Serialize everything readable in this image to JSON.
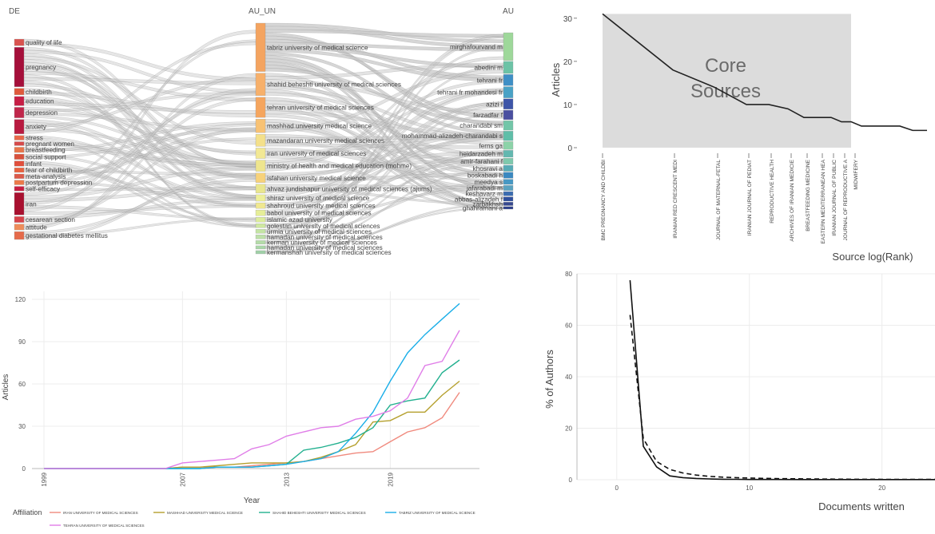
{
  "sankey": {
    "col_labels": [
      "DE",
      "AU_UN",
      "AU"
    ],
    "keywords": [
      {
        "label": "quality of life",
        "weight": 1,
        "color": "#d9534f"
      },
      {
        "label": "pregnancy",
        "weight": 6,
        "color": "#a50f3a"
      },
      {
        "label": "childbirth",
        "weight": 1,
        "color": "#e05a3c"
      },
      {
        "label": "education",
        "weight": 1.4,
        "color": "#c71e45"
      },
      {
        "label": "depression",
        "weight": 1.6,
        "color": "#c0264a"
      },
      {
        "label": "anxiety",
        "weight": 2.2,
        "color": "#b81a40"
      },
      {
        "label": "stress",
        "weight": 0.7,
        "color": "#e8684a"
      },
      {
        "label": "pregnant women",
        "weight": 0.6,
        "color": "#d64a4a"
      },
      {
        "label": "breastfeeding",
        "weight": 0.8,
        "color": "#e8754a"
      },
      {
        "label": "social support",
        "weight": 0.8,
        "color": "#d9513c"
      },
      {
        "label": "infant",
        "weight": 0.8,
        "color": "#e04f3c"
      },
      {
        "label": "fear of childbirth",
        "weight": 0.7,
        "color": "#e9623f"
      },
      {
        "label": "meta-analysis",
        "weight": 0.7,
        "color": "#dc5a4a"
      },
      {
        "label": "postpartum depression",
        "weight": 0.7,
        "color": "#ec7a4a"
      },
      {
        "label": "self-efficacy",
        "weight": 0.7,
        "color": "#c81e42"
      },
      {
        "label": "iran",
        "weight": 3.4,
        "color": "#a8102f"
      },
      {
        "label": "cesarean section",
        "weight": 0.9,
        "color": "#d8434a"
      },
      {
        "label": "attitude",
        "weight": 0.9,
        "color": "#ee8c5a"
      },
      {
        "label": "gestational diabetes mellitus",
        "weight": 1.2,
        "color": "#e56a4a"
      }
    ],
    "universities": [
      {
        "label": "tabriz university of medical science",
        "weight": 6,
        "color": "#f4a460"
      },
      {
        "label": "shahid beheshti university of medical sciences",
        "weight": 2.8,
        "color": "#f7b06a"
      },
      {
        "label": "tehran university of medical sciences",
        "weight": 2.5,
        "color": "#f5a55e"
      },
      {
        "label": "mashhad university medical science",
        "weight": 1.7,
        "color": "#f8c274"
      },
      {
        "label": "mazandaran university medical sciences",
        "weight": 1.5,
        "color": "#f4e08a"
      },
      {
        "label": "iran university of medical sciences",
        "weight": 1.3,
        "color": "#f2e894"
      },
      {
        "label": "ministry of health and medical education (mohme)",
        "weight": 1.4,
        "color": "#eee58e"
      },
      {
        "label": "isfahan university medical science",
        "weight": 1.2,
        "color": "#f7d27a"
      },
      {
        "label": "ahvaz jundishapur university of medical sciences (ajums)",
        "weight": 1.1,
        "color": "#e9e68f"
      },
      {
        "label": "shiraz university of medical science",
        "weight": 0.8,
        "color": "#eef09a"
      },
      {
        "label": "shahroud university medical sciences",
        "weight": 0.7,
        "color": "#f0e890"
      },
      {
        "label": "babol university of medical sciences",
        "weight": 0.7,
        "color": "#e6ee98"
      },
      {
        "label": "islamic azad university",
        "weight": 0.6,
        "color": "#dcec9c"
      },
      {
        "label": "golestan university of medical sciences",
        "weight": 0.5,
        "color": "#cfe8a0"
      },
      {
        "label": "urmia university of medical sciences",
        "weight": 0.5,
        "color": "#c4e4a4"
      },
      {
        "label": "hamadan university of medical sciences",
        "weight": 0.5,
        "color": "#bde0a8"
      },
      {
        "label": "kerman university of medical sciences",
        "weight": 0.45,
        "color": "#b4dca8"
      },
      {
        "label": "hamadan university of medical sciences",
        "weight": 0.4,
        "color": "#aad6a8"
      },
      {
        "label": "kermanshah university of medical sciences",
        "weight": 0.4,
        "color": "#a0d0a8"
      }
    ],
    "authors": [
      {
        "label": "mirghafourvand m",
        "weight": 3.2,
        "color": "#9ed89a"
      },
      {
        "label": "abedini m",
        "weight": 1.4,
        "color": "#6cc3a6"
      },
      {
        "label": "tehrani fr",
        "weight": 1.3,
        "color": "#3e8fc6"
      },
      {
        "label": "tehrani fr mohandesi fr",
        "weight": 1.3,
        "color": "#49a2c6"
      },
      {
        "label": "azizi f",
        "weight": 1.2,
        "color": "#3d55a8"
      },
      {
        "label": "farzadfar f",
        "weight": 1.1,
        "color": "#4a4fa0"
      },
      {
        "label": "charandabi sm",
        "weight": 1.1,
        "color": "#72c6a8"
      },
      {
        "label": "mohammad-alizadeh-charandabi s",
        "weight": 1.1,
        "color": "#5fbea8"
      },
      {
        "label": "ferns ga",
        "weight": 0.9,
        "color": "#8cd3a8"
      },
      {
        "label": "heidarzadeh m",
        "weight": 0.8,
        "color": "#62b8b0"
      },
      {
        "label": "amir-farahani f",
        "weight": 0.7,
        "color": "#7ec9ad"
      },
      {
        "label": "khosravi a",
        "weight": 0.7,
        "color": "#57abb6"
      },
      {
        "label": "boskabadi h",
        "weight": 0.7,
        "color": "#3a88c0"
      },
      {
        "label": "meedya s",
        "weight": 0.6,
        "color": "#4698c4"
      },
      {
        "label": "jafarabadi m",
        "weight": 0.6,
        "color": "#5aa2c0"
      },
      {
        "label": "keshavarz m",
        "weight": 0.5,
        "color": "#3b6cb0"
      },
      {
        "label": "abbas-alizadeh f",
        "weight": 0.5,
        "color": "#2f4f9c"
      },
      {
        "label": "zarbakhsh",
        "weight": 0.4,
        "color": "#36488f"
      },
      {
        "label": "ghahramani a",
        "weight": 0.3,
        "color": "#2c3f8a"
      }
    ]
  },
  "bradford": {
    "annotation_line1": "Core",
    "annotation_line2": "Sources",
    "ylabel": "Articles",
    "xlabel": "Source log(Rank)",
    "yticks": [
      0,
      10,
      20,
      30
    ],
    "ymax": 32,
    "sources": [
      "BMC PREGNANCY AND CHILDBI",
      "IRANIAN RED CRESCENT MEDI",
      "JOURNAL OF MATERNAL-FETAL",
      "IRANIAN JOURNAL OF PEDIAT",
      "REPRODUCTIVE HEALTH",
      "ARCHIVES OF IRANIAN MEDICIE",
      "BREASTFEEDING MEDICINE",
      "EASTERN MEDITERRANEAN HEA",
      "IRANIAN JOURNAL OF PUBLIC",
      "JOURNAL OF REPRODUCTIVE A",
      "MIDWIFERY"
    ],
    "core_count": 11,
    "articles": [
      31,
      18,
      14,
      10,
      10,
      9,
      7,
      7,
      7,
      6,
      6,
      5,
      5,
      5,
      5,
      4,
      4
    ]
  },
  "chart_data": [
    {
      "type": "line",
      "title": "",
      "xlabel": "Year",
      "ylabel": "Articles",
      "xlim": [
        1999,
        2023
      ],
      "ylim": [
        0,
        120
      ],
      "xticks": [
        1999,
        2007,
        2013,
        2019
      ],
      "yticks": [
        0,
        30,
        60,
        90,
        120
      ],
      "legend_title": "Affiliation",
      "legend_position": "bottom",
      "x": [
        1999,
        2000,
        2001,
        2002,
        2003,
        2004,
        2005,
        2006,
        2007,
        2008,
        2009,
        2010,
        2011,
        2012,
        2013,
        2014,
        2015,
        2016,
        2017,
        2018,
        2019,
        2020,
        2021,
        2022,
        2023
      ],
      "series": [
        {
          "name": "IRAN UNIVERSITY OF MEDICAL SCIENCES",
          "color": "#f08a7e",
          "values": [
            0,
            0,
            0,
            0,
            0,
            0,
            0,
            0,
            1,
            1,
            1,
            1,
            2,
            3,
            4,
            5,
            7,
            9,
            11,
            12,
            19,
            26,
            29,
            36,
            54
          ]
        },
        {
          "name": "MASHHAD UNIVERSITY MEDICAL SCIENCE",
          "color": "#b5a02e",
          "values": [
            0,
            0,
            0,
            0,
            0,
            0,
            0,
            0,
            1,
            1,
            2,
            3,
            4,
            4,
            4,
            5,
            8,
            12,
            17,
            33,
            34,
            40,
            40,
            52,
            62
          ]
        },
        {
          "name": "SHAHID BEHESHTI UNIVERSITY MEDICAL SCIENCES",
          "color": "#22b08f",
          "values": [
            0,
            0,
            0,
            0,
            0,
            0,
            0,
            0,
            0,
            0,
            1,
            1,
            1,
            2,
            3,
            13,
            15,
            18,
            22,
            29,
            45,
            48,
            50,
            68,
            77
          ]
        },
        {
          "name": "TABRIZ UNIVERSITY OF MEDICAL SCIENCE",
          "color": "#1aaee8",
          "values": [
            0,
            0,
            0,
            0,
            0,
            0,
            0,
            0,
            0,
            0,
            1,
            1,
            1,
            2,
            3,
            5,
            7,
            12,
            25,
            40,
            62,
            82,
            95,
            106,
            117
          ]
        },
        {
          "name": "TEHRAN UNIVERSITY OF MEDICAL SCIENCES",
          "color": "#e07ee8",
          "values": [
            0,
            0,
            0,
            0,
            0,
            0,
            0,
            0,
            4,
            5,
            6,
            7,
            14,
            17,
            23,
            26,
            29,
            30,
            35,
            37,
            41,
            50,
            73,
            76,
            98
          ]
        }
      ]
    },
    {
      "type": "line",
      "title": "",
      "xlabel": "Documents written",
      "ylabel": "% of Authors",
      "xlim": [
        -3,
        24
      ],
      "ylim": [
        0,
        80
      ],
      "xticks": [
        0,
        10,
        20
      ],
      "yticks": [
        0,
        20,
        40,
        60,
        80
      ],
      "x": [
        1,
        2,
        3,
        4,
        5,
        6,
        7,
        8,
        9,
        10,
        12,
        14,
        16,
        18,
        20,
        22,
        24
      ],
      "series": [
        {
          "style": "solid",
          "values": [
            77.5,
            13,
            5,
            1.5,
            0.8,
            0.5,
            0.3,
            0.2,
            0.15,
            0.1,
            0.1,
            0.05,
            0.05,
            0.05,
            0.05,
            0.05,
            0.05
          ]
        },
        {
          "style": "dashed",
          "values": [
            64,
            16,
            7.1,
            4,
            2.6,
            1.8,
            1.3,
            1,
            0.8,
            0.64,
            0.44,
            0.33,
            0.25,
            0.2,
            0.16,
            0.13,
            0.11
          ]
        }
      ]
    }
  ]
}
